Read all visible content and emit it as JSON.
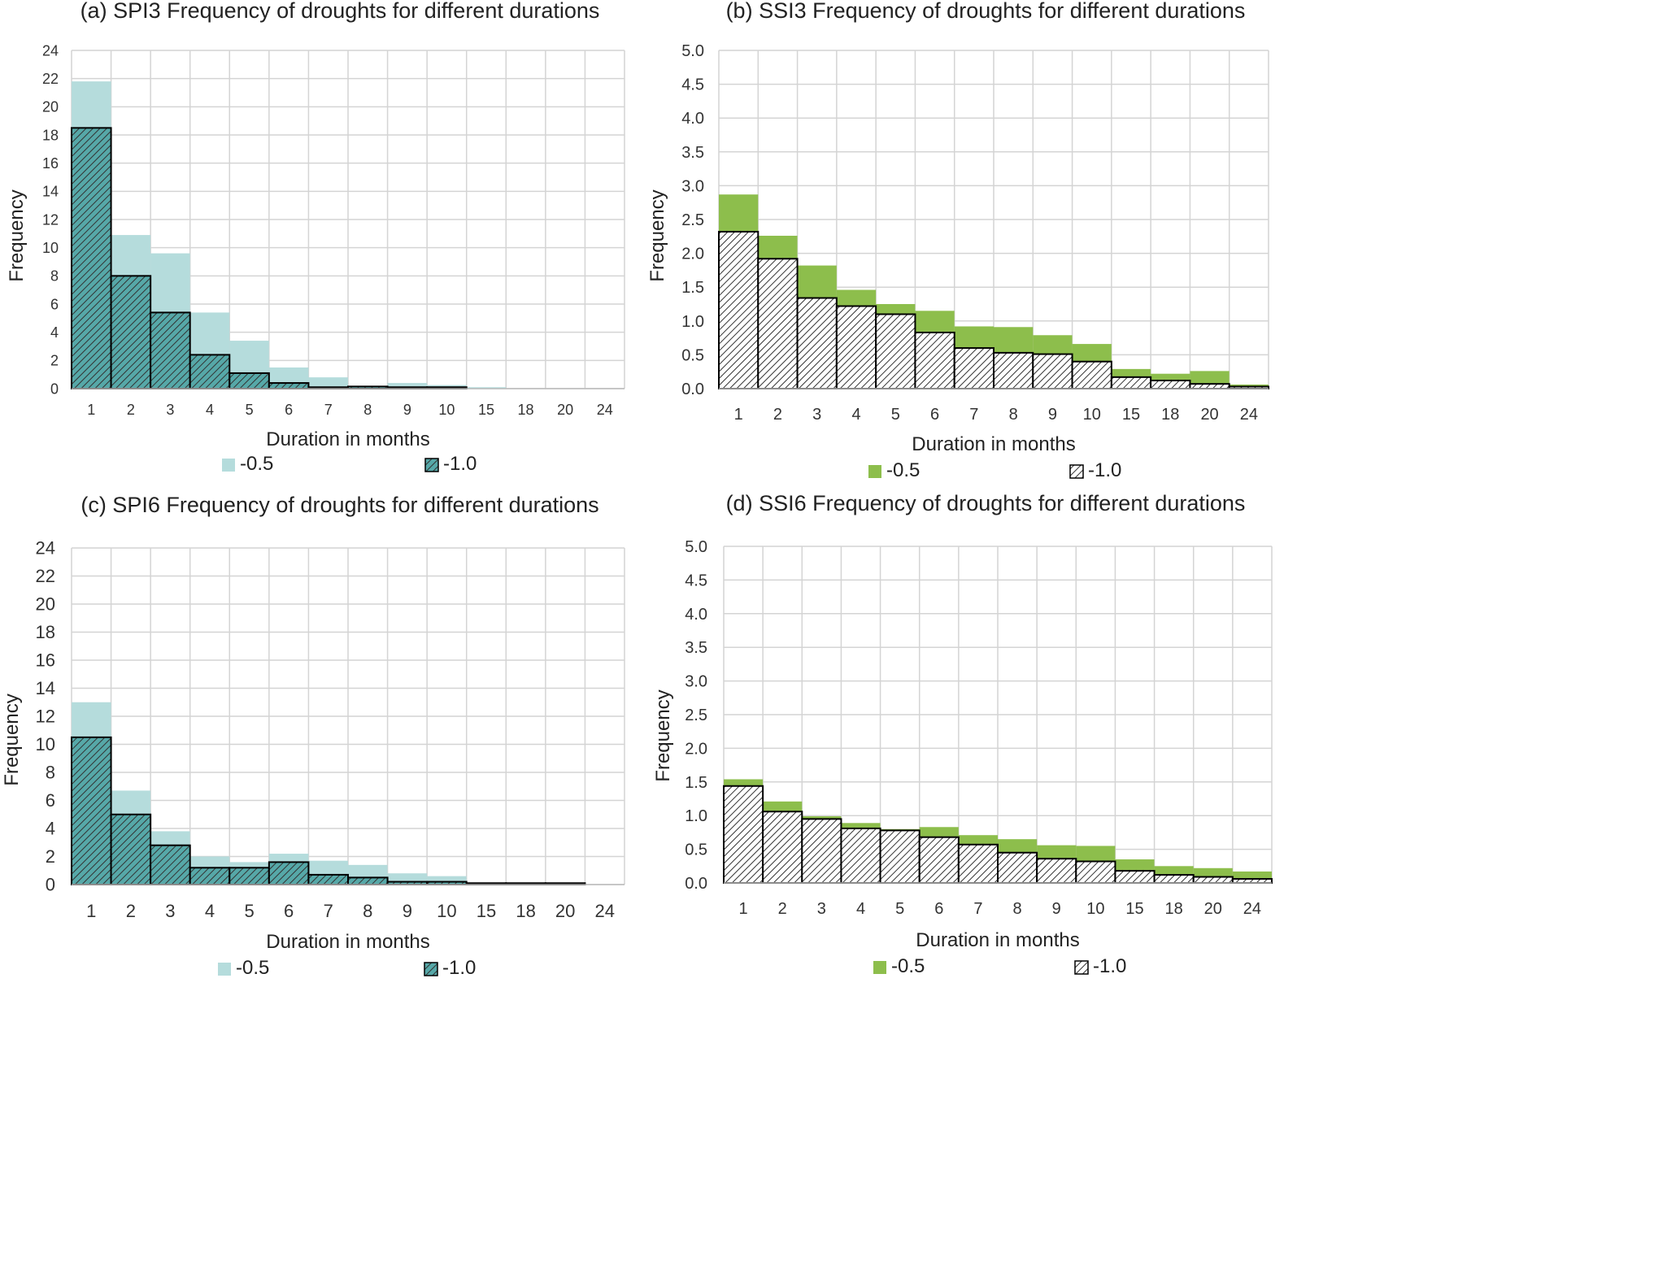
{
  "colors": {
    "spi_light": "#b5dcdc",
    "spi_dark": "#56a8a8",
    "ssi_light": "#8dbe4c",
    "ssi_dark": "#ffffff",
    "hatch_line": "#333333",
    "grid": "#d4d4d4",
    "outline": "#000000"
  },
  "chart_data": [
    {
      "id": "a",
      "type": "bar",
      "title": "(a) SPI3 Frequency of droughts for different durations",
      "xlabel": "Duration in months",
      "ylabel": "Frequency",
      "categories": [
        "1",
        "2",
        "3",
        "4",
        "5",
        "6",
        "7",
        "8",
        "9",
        "10",
        "15",
        "18",
        "20",
        "24"
      ],
      "ylim": [
        0,
        24
      ],
      "yticks": [
        "0",
        "2",
        "4",
        "6",
        "8",
        "10",
        "12",
        "14",
        "16",
        "18",
        "20",
        "22",
        "24"
      ],
      "ytick_values": [
        0,
        2,
        4,
        6,
        8,
        10,
        12,
        14,
        16,
        18,
        20,
        22,
        24
      ],
      "grid": true,
      "legend_position": "bottom",
      "palette": "spi",
      "series": [
        {
          "name": "-0.5",
          "values": [
            21.8,
            10.9,
            9.6,
            5.4,
            3.4,
            1.5,
            0.8,
            0.2,
            0.4,
            0.25,
            0.1,
            0.0,
            0.0,
            0.0
          ]
        },
        {
          "name": "-1.0",
          "values": [
            18.5,
            8.0,
            5.4,
            2.4,
            1.1,
            0.4,
            0.1,
            0.15,
            0.1,
            0.1,
            0.0,
            0.0,
            0.0,
            0.0
          ]
        }
      ]
    },
    {
      "id": "b",
      "type": "bar",
      "title": "(b) SSI3 Frequency of droughts for different durations",
      "xlabel": "Duration in months",
      "ylabel": "Frequency",
      "categories": [
        "1",
        "2",
        "3",
        "4",
        "5",
        "6",
        "7",
        "8",
        "9",
        "10",
        "15",
        "18",
        "20",
        "24"
      ],
      "ylim": [
        0,
        5
      ],
      "yticks": [
        "0.0",
        "0.5",
        "1.0",
        "1.5",
        "2.0",
        "2.5",
        "3.0",
        "3.5",
        "4.0",
        "4.5",
        "5.0"
      ],
      "ytick_values": [
        0,
        0.5,
        1,
        1.5,
        2,
        2.5,
        3,
        3.5,
        4,
        4.5,
        5
      ],
      "grid": true,
      "legend_position": "bottom",
      "palette": "ssi",
      "series": [
        {
          "name": "-0.5",
          "values": [
            2.87,
            2.26,
            1.82,
            1.46,
            1.25,
            1.15,
            0.92,
            0.91,
            0.79,
            0.66,
            0.29,
            0.22,
            0.26,
            0.06
          ]
        },
        {
          "name": "-1.0",
          "values": [
            2.32,
            1.92,
            1.34,
            1.22,
            1.1,
            0.83,
            0.6,
            0.53,
            0.51,
            0.4,
            0.17,
            0.12,
            0.07,
            0.03
          ]
        }
      ]
    },
    {
      "id": "c",
      "type": "bar",
      "title": "(c) SPI6 Frequency of droughts for different durations",
      "xlabel": "Duration in months",
      "ylabel": "Frequency",
      "categories": [
        "1",
        "2",
        "3",
        "4",
        "5",
        "6",
        "7",
        "8",
        "9",
        "10",
        "15",
        "18",
        "20",
        "24"
      ],
      "ylim": [
        0,
        24
      ],
      "yticks": [
        "0",
        "2",
        "4",
        "6",
        "8",
        "10",
        "12",
        "14",
        "16",
        "18",
        "20",
        "22",
        "24"
      ],
      "ytick_values": [
        0,
        2,
        4,
        6,
        8,
        10,
        12,
        14,
        16,
        18,
        20,
        22,
        24
      ],
      "grid": true,
      "legend_position": "bottom",
      "palette": "spi",
      "series": [
        {
          "name": "-0.5",
          "values": [
            13.0,
            6.7,
            3.8,
            2.0,
            1.6,
            2.2,
            1.7,
            1.4,
            0.8,
            0.6,
            0.1,
            0.1,
            0.1,
            0.0
          ]
        },
        {
          "name": "-1.0",
          "values": [
            10.5,
            5.0,
            2.8,
            1.2,
            1.2,
            1.6,
            0.7,
            0.5,
            0.2,
            0.2,
            0.1,
            0.1,
            0.1,
            0.0
          ]
        }
      ]
    },
    {
      "id": "d",
      "type": "bar",
      "title": "(d) SSI6 Frequency of droughts for different durations",
      "xlabel": "Duration in months",
      "ylabel": "Frequency",
      "categories": [
        "1",
        "2",
        "3",
        "4",
        "5",
        "6",
        "7",
        "8",
        "9",
        "10",
        "15",
        "18",
        "20",
        "24"
      ],
      "ylim": [
        0,
        5
      ],
      "yticks": [
        "0.0",
        "0.5",
        "1.0",
        "1.5",
        "2.0",
        "2.5",
        "3.0",
        "3.5",
        "4.0",
        "4.5",
        "5.0"
      ],
      "ytick_values": [
        0,
        0.5,
        1,
        1.5,
        2,
        2.5,
        3,
        3.5,
        4,
        4.5,
        5
      ],
      "grid": true,
      "legend_position": "bottom",
      "palette": "ssi",
      "series": [
        {
          "name": "-0.5",
          "values": [
            1.54,
            1.21,
            0.99,
            0.89,
            0.8,
            0.83,
            0.71,
            0.65,
            0.56,
            0.55,
            0.35,
            0.25,
            0.22,
            0.17
          ]
        },
        {
          "name": "-1.0",
          "values": [
            1.44,
            1.06,
            0.95,
            0.81,
            0.78,
            0.68,
            0.57,
            0.45,
            0.36,
            0.32,
            0.18,
            0.12,
            0.09,
            0.06
          ]
        }
      ]
    }
  ]
}
